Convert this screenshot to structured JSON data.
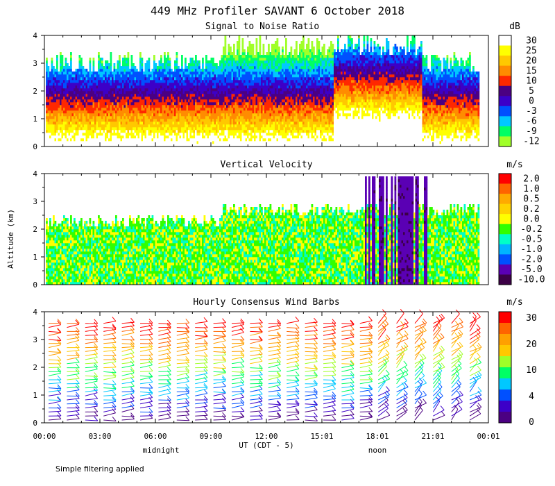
{
  "figure": {
    "title": "449 MHz Profiler SAVANT  6 October 2018",
    "ylabel": "Altitude (km)",
    "xlabel": "UT  (CDT - 5)",
    "midnight_label": "midnight",
    "noon_label": "noon",
    "footnote": "Simple filtering applied",
    "x_ticks": [
      "00:00",
      "03:00",
      "06:00",
      "09:00",
      "12:00",
      "15:01",
      "18:01",
      "21:01",
      "00:01"
    ],
    "y_ticks": [
      "0",
      "1",
      "2",
      "3",
      "4"
    ]
  },
  "chart_data": [
    {
      "type": "heatmap",
      "title": "Signal to Noise Ratio",
      "ylim": [
        0,
        4
      ],
      "colorbar": {
        "unit": "dB",
        "labels": [
          "30",
          "25",
          "20",
          "15",
          "10",
          "5",
          "0",
          "-3",
          "-6",
          "-9",
          "-12"
        ],
        "colors": [
          "#ffffff",
          "#ffff00",
          "#ffc800",
          "#ff8c00",
          "#ff2800",
          "#4b0082",
          "#3c00c8",
          "#0050ff",
          "#00c8ff",
          "#00ff64",
          "#a0ff28"
        ]
      }
    },
    {
      "type": "heatmap",
      "title": "Vertical Velocity",
      "ylim": [
        0,
        4
      ],
      "colorbar": {
        "unit": "m/s",
        "labels": [
          "2.0",
          "1.0",
          "0.5",
          "0.2",
          "0.0",
          "-0.2",
          "-0.5",
          "-1.0",
          "-2.0",
          "-5.0",
          "-10.0"
        ],
        "colors": [
          "#ff0000",
          "#ff6400",
          "#ffaa00",
          "#ffd200",
          "#ffff00",
          "#32ff00",
          "#00ffc8",
          "#00b4ff",
          "#0050ff",
          "#5a00b4",
          "#3c0046"
        ]
      }
    },
    {
      "type": "scatter",
      "title": "Hourly Consensus Wind Barbs",
      "ylim": [
        0,
        4
      ],
      "colorbar": {
        "unit": "m/s",
        "labels": [
          "30",
          "20",
          "10",
          "4",
          "0"
        ],
        "colors": [
          "#ff0000",
          "#ff6400",
          "#ffa000",
          "#ffc800",
          "#a0ff28",
          "#00ff64",
          "#00c8ff",
          "#0050ff",
          "#3c00c8",
          "#4b0082"
        ]
      }
    }
  ]
}
